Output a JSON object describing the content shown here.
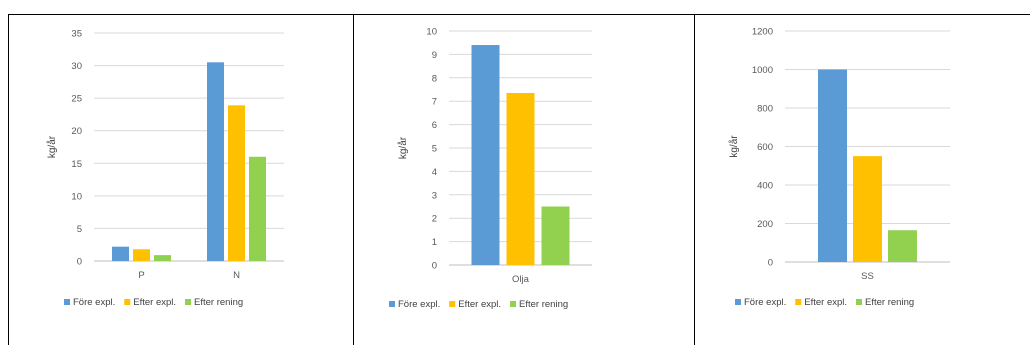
{
  "colors": {
    "before": "#5b9bd5",
    "after": "#ffc000",
    "treated": "#92d050",
    "grid": "#d9d9d9"
  },
  "chart_data": [
    {
      "type": "bar",
      "categories": [
        "P",
        "N"
      ],
      "ylabel": "kg/år",
      "ylim": [
        0,
        35
      ],
      "yticks": [
        0,
        5,
        10,
        15,
        20,
        25,
        30,
        35
      ],
      "legend": "bottom",
      "series": [
        {
          "name": "Före expl.",
          "color_key": "before",
          "values": [
            2.2,
            30.5
          ]
        },
        {
          "name": "Efter expl.",
          "color_key": "after",
          "values": [
            1.8,
            23.9
          ]
        },
        {
          "name": "Efter rening",
          "color_key": "treated",
          "values": [
            0.9,
            16.0
          ]
        }
      ]
    },
    {
      "type": "bar",
      "categories": [
        "Olja"
      ],
      "ylabel": "kg/år",
      "ylim": [
        0,
        10
      ],
      "yticks": [
        0,
        1,
        2,
        3,
        4,
        5,
        6,
        7,
        8,
        9,
        10
      ],
      "legend": "bottom",
      "series": [
        {
          "name": "Före expl.",
          "color_key": "before",
          "values": [
            9.4
          ]
        },
        {
          "name": "Efter expl.",
          "color_key": "after",
          "values": [
            7.35
          ]
        },
        {
          "name": "Efter rening",
          "color_key": "treated",
          "values": [
            2.5
          ]
        }
      ]
    },
    {
      "type": "bar",
      "categories": [
        "SS"
      ],
      "ylabel": "kg/år",
      "ylim": [
        0,
        1200
      ],
      "yticks": [
        0,
        200,
        400,
        600,
        800,
        1000,
        1200
      ],
      "legend": "bottom",
      "series": [
        {
          "name": "Före expl.",
          "color_key": "before",
          "values": [
            1000
          ]
        },
        {
          "name": "Efter expl.",
          "color_key": "after",
          "values": [
            550
          ]
        },
        {
          "name": "Efter rening",
          "color_key": "treated",
          "values": [
            165
          ]
        }
      ]
    }
  ]
}
